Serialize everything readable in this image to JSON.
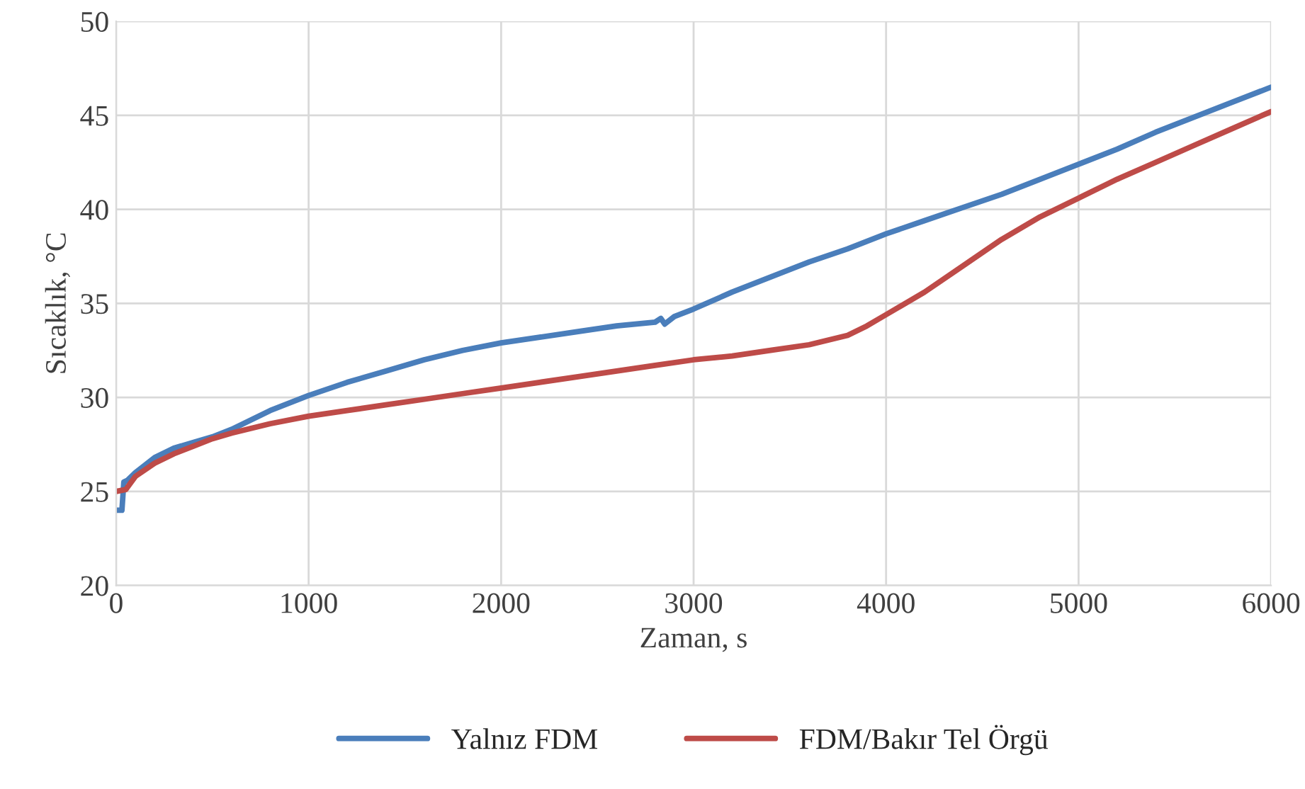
{
  "chart_data": {
    "type": "line",
    "xlabel": "Zaman, s",
    "ylabel": "Sıcaklık, °C",
    "xlim": [
      0,
      6000
    ],
    "xticks": [
      0,
      1000,
      2000,
      3000,
      4000,
      5000,
      6000
    ],
    "ylim": [
      20,
      50
    ],
    "yticks": [
      20,
      25,
      30,
      35,
      40,
      45,
      50
    ],
    "grid": true,
    "legend": "bottom",
    "marker": "none",
    "line_style": "solid",
    "series": [
      {
        "name": "Yalnız FDM",
        "color": "#4a7ebb",
        "x": [
          0,
          30,
          40,
          60,
          100,
          200,
          300,
          400,
          500,
          600,
          700,
          800,
          1000,
          1200,
          1400,
          1600,
          1800,
          2000,
          2200,
          2400,
          2600,
          2800,
          2830,
          2850,
          2900,
          3000,
          3200,
          3400,
          3600,
          3800,
          4000,
          4200,
          4400,
          4600,
          4800,
          5000,
          5200,
          5400,
          5600,
          5800,
          6000
        ],
        "values": [
          24.0,
          24.0,
          25.5,
          25.6,
          26.0,
          26.8,
          27.3,
          27.6,
          27.9,
          28.3,
          28.8,
          29.3,
          30.1,
          30.8,
          31.4,
          32.0,
          32.5,
          32.9,
          33.2,
          33.5,
          33.8,
          34.0,
          34.2,
          33.9,
          34.3,
          34.7,
          35.6,
          36.4,
          37.2,
          37.9,
          38.7,
          39.4,
          40.1,
          40.8,
          41.6,
          42.4,
          43.2,
          44.1,
          44.9,
          45.7,
          46.5
        ]
      },
      {
        "name": "FDM/Bakır Tel Örgü",
        "color": "#be4b48",
        "x": [
          0,
          50,
          100,
          200,
          300,
          400,
          500,
          600,
          800,
          1000,
          1200,
          1400,
          1600,
          1800,
          2000,
          2200,
          2400,
          2600,
          2800,
          3000,
          3200,
          3400,
          3600,
          3800,
          3900,
          4000,
          4200,
          4400,
          4600,
          4800,
          5000,
          5200,
          5400,
          5600,
          5800,
          6000
        ],
        "values": [
          25.0,
          25.1,
          25.8,
          26.5,
          27.0,
          27.4,
          27.8,
          28.1,
          28.6,
          29.0,
          29.3,
          29.6,
          29.9,
          30.2,
          30.5,
          30.8,
          31.1,
          31.4,
          31.7,
          32.0,
          32.2,
          32.5,
          32.8,
          33.3,
          33.8,
          34.4,
          35.6,
          37.0,
          38.4,
          39.6,
          40.6,
          41.6,
          42.5,
          43.4,
          44.3,
          45.2
        ]
      }
    ]
  }
}
